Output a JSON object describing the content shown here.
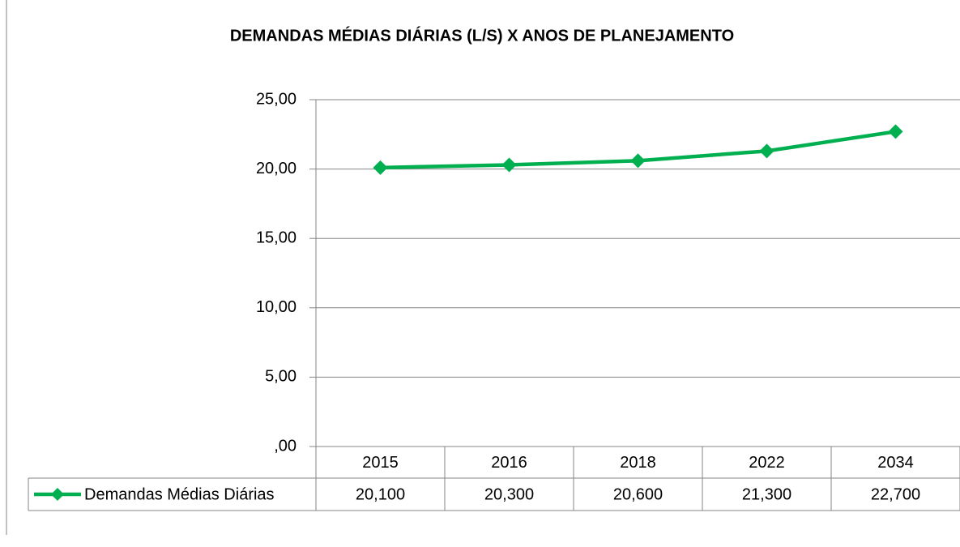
{
  "chart_data": {
    "type": "line",
    "title": "DEMANDAS MÉDIAS DIÁRIAS (L/S) X ANOS DE PLANEJAMENTO",
    "categories": [
      "2015",
      "2016",
      "2018",
      "2022",
      "2034"
    ],
    "series": [
      {
        "name": "Demandas Médias Diárias",
        "color": "#00b050",
        "values": [
          20.1,
          20.3,
          20.6,
          21.3,
          22.7
        ],
        "value_labels": [
          "20,100",
          "20,300",
          "20,600",
          "21,300",
          "22,700"
        ]
      }
    ],
    "ylim": [
      0,
      25
    ],
    "yticks": [
      {
        "value": 0,
        "label": ",00"
      },
      {
        "value": 5,
        "label": "5,00"
      },
      {
        "value": 10,
        "label": "10,00"
      },
      {
        "value": 15,
        "label": "15,00"
      },
      {
        "value": 20,
        "label": "20,00"
      },
      {
        "value": 25,
        "label": "25,00"
      }
    ],
    "grid": true
  }
}
